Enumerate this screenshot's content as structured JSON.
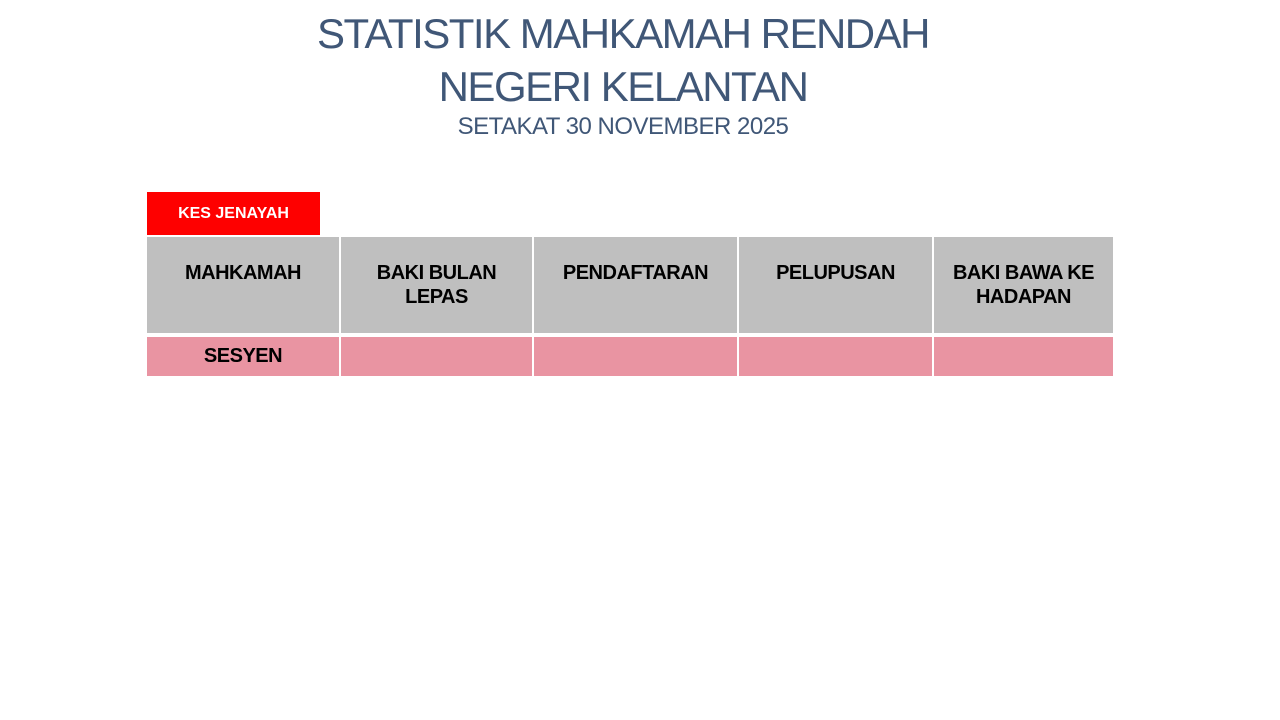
{
  "slide": {
    "title_line1": "STATISTIK MAHKAMAH RENDAH",
    "title_line2": "NEGERI KELANTAN",
    "subtitle": "SETAKAT 30 NOVEMBER 2025"
  },
  "badge": {
    "label": "KES JENAYAH"
  },
  "table": {
    "columns": [
      "MAHKAMAH",
      "BAKI BULAN LEPAS",
      "PENDAFTARAN",
      "PELUPUSAN",
      "BAKI BAWA KE HADAPAN"
    ],
    "rows": [
      {
        "court": "SESYEN",
        "baki_bulan_lepas": "",
        "pendaftaran": "",
        "pelupusan": "",
        "baki_bawa_ke_hadapan": ""
      }
    ]
  },
  "theme": {
    "title_color": "#405777",
    "badge_red": "#FE0000",
    "badge_text": "#FFFFFF",
    "header_gray": "#BFBFBF",
    "row_pink": "#E994A2",
    "table_text": "#000000"
  }
}
